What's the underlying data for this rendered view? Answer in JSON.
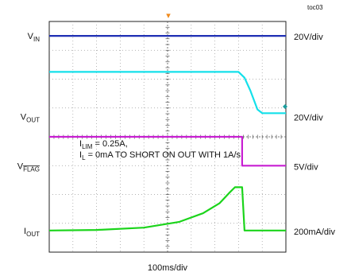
{
  "chart_data": {
    "type": "line",
    "figure_id": "toc03",
    "timebase": "100ms/div",
    "grid": true,
    "divisions": {
      "x": 10,
      "y": 8
    },
    "x_unit": "div",
    "trigger_marker": "▾",
    "annotations": [
      {
        "prefix": "I",
        "sub": "LIM",
        "text": " = 0.25A,"
      },
      {
        "prefix": "I",
        "sub": "L",
        "text": " = 0mA TO SHORT ON OUT WITH 1A/s"
      }
    ],
    "series": [
      {
        "key": "vin",
        "name": "V",
        "sub": "IN",
        "overline": false,
        "scale": "20V/div",
        "color": "#1f2fb4",
        "offset_div": 7.5,
        "points": [
          [
            0,
            0
          ],
          [
            10,
            0
          ]
        ]
      },
      {
        "key": "vout",
        "name": "V",
        "sub": "OUT",
        "overline": false,
        "scale": "20V/div",
        "color": "#14e0ea",
        "offset_div": 4.7,
        "points": [
          [
            0,
            1.55
          ],
          [
            8.0,
            1.55
          ],
          [
            8.25,
            1.35
          ],
          [
            8.5,
            0.9
          ],
          [
            8.8,
            0.25
          ],
          [
            9.0,
            0.12
          ],
          [
            10,
            0.12
          ]
        ]
      },
      {
        "key": "vflag",
        "name": "V",
        "sub": "FLAG",
        "overline": true,
        "scale": "5V/div",
        "color": "#c81fd2",
        "offset_div": 3.0,
        "points": [
          [
            0,
            1.0
          ],
          [
            8.15,
            1.0
          ],
          [
            8.15,
            0
          ],
          [
            10,
            0
          ]
        ]
      },
      {
        "key": "iout",
        "name": "I",
        "sub": "OUT",
        "overline": false,
        "scale": "200mA/div",
        "color": "#1bd41b",
        "offset_div": 0.75,
        "points": [
          [
            0,
            0
          ],
          [
            2,
            0.02
          ],
          [
            4,
            0.1
          ],
          [
            5.5,
            0.3
          ],
          [
            6.5,
            0.6
          ],
          [
            7.2,
            0.95
          ],
          [
            7.6,
            1.3
          ],
          [
            7.85,
            1.5
          ],
          [
            8.15,
            1.5
          ],
          [
            8.25,
            0
          ],
          [
            10,
            0
          ]
        ]
      }
    ]
  }
}
